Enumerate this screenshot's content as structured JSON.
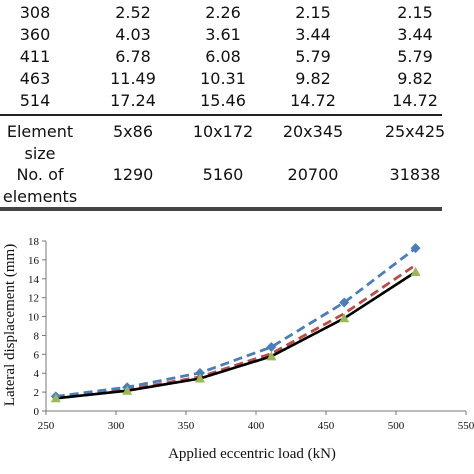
{
  "table": {
    "top_rows": [
      [
        "308",
        "2.52",
        "2.26",
        "2.15",
        "2.15"
      ],
      [
        "360",
        "4.03",
        "3.61",
        "3.44",
        "3.44"
      ],
      [
        "411",
        "6.78",
        "6.08",
        "5.79",
        "5.79"
      ],
      [
        "463",
        "11.49",
        "10.31",
        "9.82",
        "9.82"
      ],
      [
        "514",
        "17.24",
        "15.46",
        "14.72",
        "14.72"
      ]
    ],
    "element_size_label_1": "Element",
    "element_size_label_2": "size",
    "element_sizes": [
      "5x86",
      "10x172",
      "20x345",
      "25x425"
    ],
    "num_elements_label_1": "No. of",
    "num_elements_label_2": "elements",
    "num_elements": [
      "1290",
      "5160",
      "20700",
      "31838"
    ]
  },
  "chart_data": {
    "type": "line",
    "xlabel": "Applied eccentric load (kN)",
    "ylabel": "Lateral displacement (mm)",
    "xlim": [
      250,
      550
    ],
    "ylim": [
      0,
      18
    ],
    "xticks": [
      250,
      300,
      350,
      400,
      450,
      500,
      550
    ],
    "yticks": [
      0,
      2,
      4,
      6,
      8,
      10,
      12,
      14,
      16,
      18
    ],
    "x": [
      257,
      308,
      360,
      411,
      463,
      514
    ],
    "series": [
      {
        "values": [
          1.55,
          2.52,
          4.03,
          6.78,
          11.49,
          17.24
        ],
        "color": "#4a7ebb",
        "style": "dashed",
        "marker": "diamond"
      },
      {
        "values": [
          1.4,
          2.26,
          3.61,
          6.08,
          10.31,
          15.46
        ],
        "color": "#be4b48",
        "style": "dashed",
        "marker": "none"
      },
      {
        "values": [
          1.35,
          2.15,
          3.44,
          5.79,
          9.82,
          14.72
        ],
        "color": "#98b954",
        "style": "dotted",
        "marker": "triangle"
      },
      {
        "values": [
          1.35,
          2.15,
          3.44,
          5.79,
          9.82,
          14.72
        ],
        "color": "#000000",
        "style": "solid",
        "marker": "none"
      }
    ]
  }
}
